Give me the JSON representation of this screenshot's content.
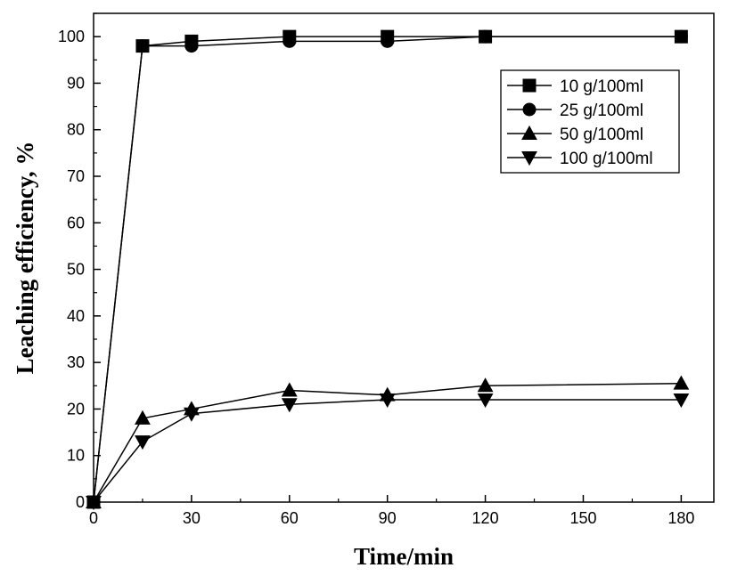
{
  "chart_data": {
    "type": "line",
    "xlabel": "Time/min",
    "ylabel": "Leaching efficiency, %",
    "xlim": [
      0,
      190
    ],
    "ylim": [
      0,
      105
    ],
    "xticks": [
      0,
      30,
      60,
      90,
      120,
      150,
      180
    ],
    "yticks": [
      0,
      10,
      20,
      30,
      40,
      50,
      60,
      70,
      80,
      90,
      100
    ],
    "grid": false,
    "legend_position": "top-right",
    "series": [
      {
        "name": "10 g/100ml",
        "marker": "square",
        "x": [
          0,
          15,
          30,
          60,
          90,
          120,
          180
        ],
        "y": [
          0,
          98,
          99,
          100,
          100,
          100,
          100
        ]
      },
      {
        "name": "25 g/100ml",
        "marker": "circle",
        "x": [
          0,
          15,
          30,
          60,
          90,
          120,
          180
        ],
        "y": [
          0,
          98,
          98,
          99,
          99,
          100,
          100
        ]
      },
      {
        "name": "50 g/100ml",
        "marker": "triangle-up",
        "x": [
          0,
          15,
          30,
          60,
          90,
          120,
          180
        ],
        "y": [
          0,
          18,
          20,
          24,
          23,
          25,
          25.5
        ]
      },
      {
        "name": "100 g/100ml",
        "marker": "triangle-down",
        "x": [
          0,
          15,
          30,
          60,
          90,
          120,
          180
        ],
        "y": [
          0,
          13,
          19,
          21,
          22,
          22,
          22
        ]
      }
    ]
  }
}
